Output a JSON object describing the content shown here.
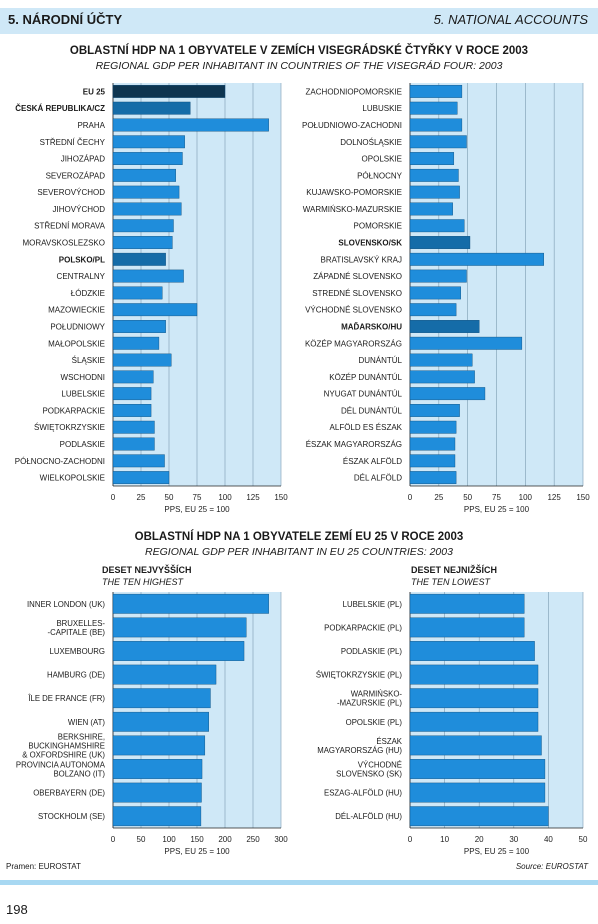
{
  "header": {
    "left": "5. NÁRODNÍ ÚČTY",
    "right": "5. NATIONAL ACCOUNTS"
  },
  "section1": {
    "title": "OBLASTNÍ HDP NA 1 OBYVATELE V ZEMÍCH VISEGRÁDSKÉ ČTYŘKY V ROCE 2003",
    "subtitle": "REGIONAL GDP PER INHABITANT IN COUNTRIES OF THE VISEGRÁD FOUR: 2003"
  },
  "section2": {
    "title": "OBLASTNÍ HDP NA 1 OBYVATELE ZEMÍ EU 25 V ROCE 2003",
    "subtitle": "REGIONAL GDP PER INHABITANT IN EU 25 COUNTRIES: 2003",
    "left_group": "DESET NEJVYŠŠÍCH",
    "left_group_en": "THE TEN HIGHEST",
    "right_group": "DESET NEJNIŽŠÍCH",
    "right_group_en": "THE TEN LOWEST"
  },
  "footer": {
    "source_cz": "Pramen: EUROSTAT",
    "source_en": "Source: EUROSTAT",
    "page": "198"
  },
  "colors": {
    "bar": "#1f8ddb",
    "bar_dark": "#156ca8",
    "bar_total": "#0e3550",
    "panel": "#cfe8f7",
    "grid": "#7a9ab0"
  },
  "chart_data": [
    {
      "type": "bar",
      "orientation": "horizontal",
      "xlabel": "PPS, EU 25 = 100",
      "xlim": [
        0,
        150
      ],
      "xticks": [
        0,
        25,
        50,
        75,
        100,
        125,
        150
      ],
      "categories": [
        "EU 25",
        "ČESKÁ REPUBLIKA/CZ",
        "PRAHA",
        "STŘEDNÍ ČECHY",
        "JIHOZÁPAD",
        "SEVEROZÁPAD",
        "SEVEROVÝCHOD",
        "JIHOVÝCHOD",
        "STŘEDNÍ MORAVA",
        "MORAVSKOSLEZSKO",
        "POLSKO/PL",
        "CENTRALNY",
        "ŁÓDZKIE",
        "MAZOWIECKIE",
        "POŁUDNIOWY",
        "MAŁOPOLSKIE",
        "ŚLĄSKIE",
        "WSCHODNI",
        "LUBELSKIE",
        "PODKARPACKIE",
        "ŚWIĘTOKRZYSKIE",
        "PODLASKIE",
        "PÓŁNOCNO-ZACHODNI",
        "WIELKOPOLSKIE"
      ],
      "values": [
        100,
        69,
        139,
        64,
        62,
        56,
        59,
        61,
        54,
        53,
        47,
        63,
        44,
        75,
        47,
        41,
        52,
        36,
        34,
        34,
        37,
        37,
        46,
        50
      ],
      "bold": [
        0,
        1,
        10
      ],
      "highlight": [
        1,
        10
      ],
      "total": [
        0
      ]
    },
    {
      "type": "bar",
      "orientation": "horizontal",
      "xlabel": "PPS, EU 25 = 100",
      "xlim": [
        0,
        150
      ],
      "xticks": [
        0,
        25,
        50,
        75,
        100,
        125,
        150
      ],
      "categories": [
        "ZACHODNIOPOMORSKIE",
        "LUBUSKIE",
        "POŁUDNIOWO-ZACHODNI",
        "DOLNOŚLĄSKIE",
        "OPOLSKIE",
        "PÓŁNOCNY",
        "KUJAWSKO-POMORSKIE",
        "WARMIŃSKO-MAZURSKIE",
        "POMORSKIE",
        "SLOVENSKO/SK",
        "BRATISLAVSKÝ KRAJ",
        "ZÁPADNÉ SLOVENSKO",
        "STREDNÉ SLOVENSKO",
        "VÝCHODNÉ SLOVENSKO",
        "MAĎARSKO/HU",
        "KÖZÉP MAGYARORSZÁG",
        "DUNÁNTÚL",
        "KÖZÉP DUNÁNTÚL",
        "NYUGAT DUNÁNTÚL",
        "DÉL DUNÁNTÚL",
        "ALFÖLD ES ÉSZAK",
        "ÉSZAK MAGYARORSZÁG",
        "ÉSZAK ALFÖLD",
        "DÉL ALFÖLD"
      ],
      "values": [
        45,
        41,
        45,
        49,
        38,
        42,
        43,
        37,
        47,
        52,
        116,
        49,
        44,
        40,
        60,
        97,
        54,
        56,
        65,
        43,
        40,
        39,
        39,
        40
      ],
      "bold": [
        9,
        14
      ],
      "highlight": [
        9,
        14
      ],
      "total": []
    },
    {
      "type": "bar",
      "orientation": "horizontal",
      "xlabel": "PPS, EU 25 = 100",
      "xlim": [
        0,
        300
      ],
      "xticks": [
        0,
        50,
        100,
        150,
        200,
        250,
        300
      ],
      "categories": [
        "INNER LONDON (UK)",
        "BRUXELLES-\n-CAPITALE (BE)",
        "LUXEMBOURG",
        "HAMBURG (DE)",
        "ÎLE DE FRANCE (FR)",
        "WIEN (AT)",
        "BERKSHIRE,\nBUCKINGHAMSHIRE\n& OXFORDSHIRE (UK)",
        "PROVINCIA AUTONOMA\nBOLZANO (IT)",
        "OBERBAYERN (DE)",
        "STOCKHOLM (SE)"
      ],
      "values": [
        278,
        238,
        234,
        184,
        174,
        171,
        164,
        159,
        158,
        157
      ],
      "bold": [],
      "highlight": [],
      "total": []
    },
    {
      "type": "bar",
      "orientation": "horizontal",
      "xlabel": "PPS, EU 25 = 100",
      "xlim": [
        0,
        50
      ],
      "xticks": [
        0,
        10,
        20,
        30,
        40,
        50
      ],
      "categories": [
        "LUBELSKIE (PL)",
        "PODKARPACKIE (PL)",
        "PODLASKIE (PL)",
        "ŚWIĘTOKRZYSKIE (PL)",
        "WARMIŃSKO-\n-MAZURSKIE (PL)",
        "OPOLSKIE (PL)",
        "ÉSZAK\nMAGYARORSZÁG (HU)",
        "VÝCHODNÉ\nSLOVENSKO (SK)",
        "ESZAG-ALFÖLD (HU)",
        "DÉL-ALFÖLD (HU)"
      ],
      "values": [
        33,
        33,
        36,
        37,
        37,
        37,
        38,
        39,
        39,
        40
      ],
      "bold": [],
      "highlight": [],
      "total": []
    }
  ]
}
